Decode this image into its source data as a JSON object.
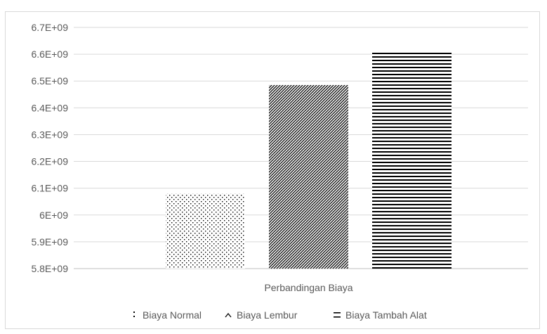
{
  "chart_data": {
    "type": "bar",
    "categories": [
      "Perbandingan Biaya"
    ],
    "series": [
      {
        "name": "Biaya Normal",
        "values": [
          6080000000
        ],
        "pattern": "dots"
      },
      {
        "name": "Biaya Lembur",
        "values": [
          6485000000
        ],
        "pattern": "diagonal"
      },
      {
        "name": "Biaya Tambah Alat",
        "values": [
          6612000000
        ],
        "pattern": "horizontal"
      }
    ],
    "title": "",
    "xlabel": "",
    "ylabel": "",
    "ylim": [
      5800000000,
      6700000000
    ],
    "yticks": [
      "5.8E+09",
      "5.9E+09",
      "6E+09",
      "6.1E+09",
      "6.2E+09",
      "6.3E+09",
      "6.4E+09",
      "6.5E+09",
      "6.6E+09",
      "6.7E+09"
    ],
    "grid": true,
    "legend_position": "bottom",
    "colors": {
      "bar": "#000000",
      "grid": "#d9d9d9",
      "text": "#595959"
    }
  }
}
